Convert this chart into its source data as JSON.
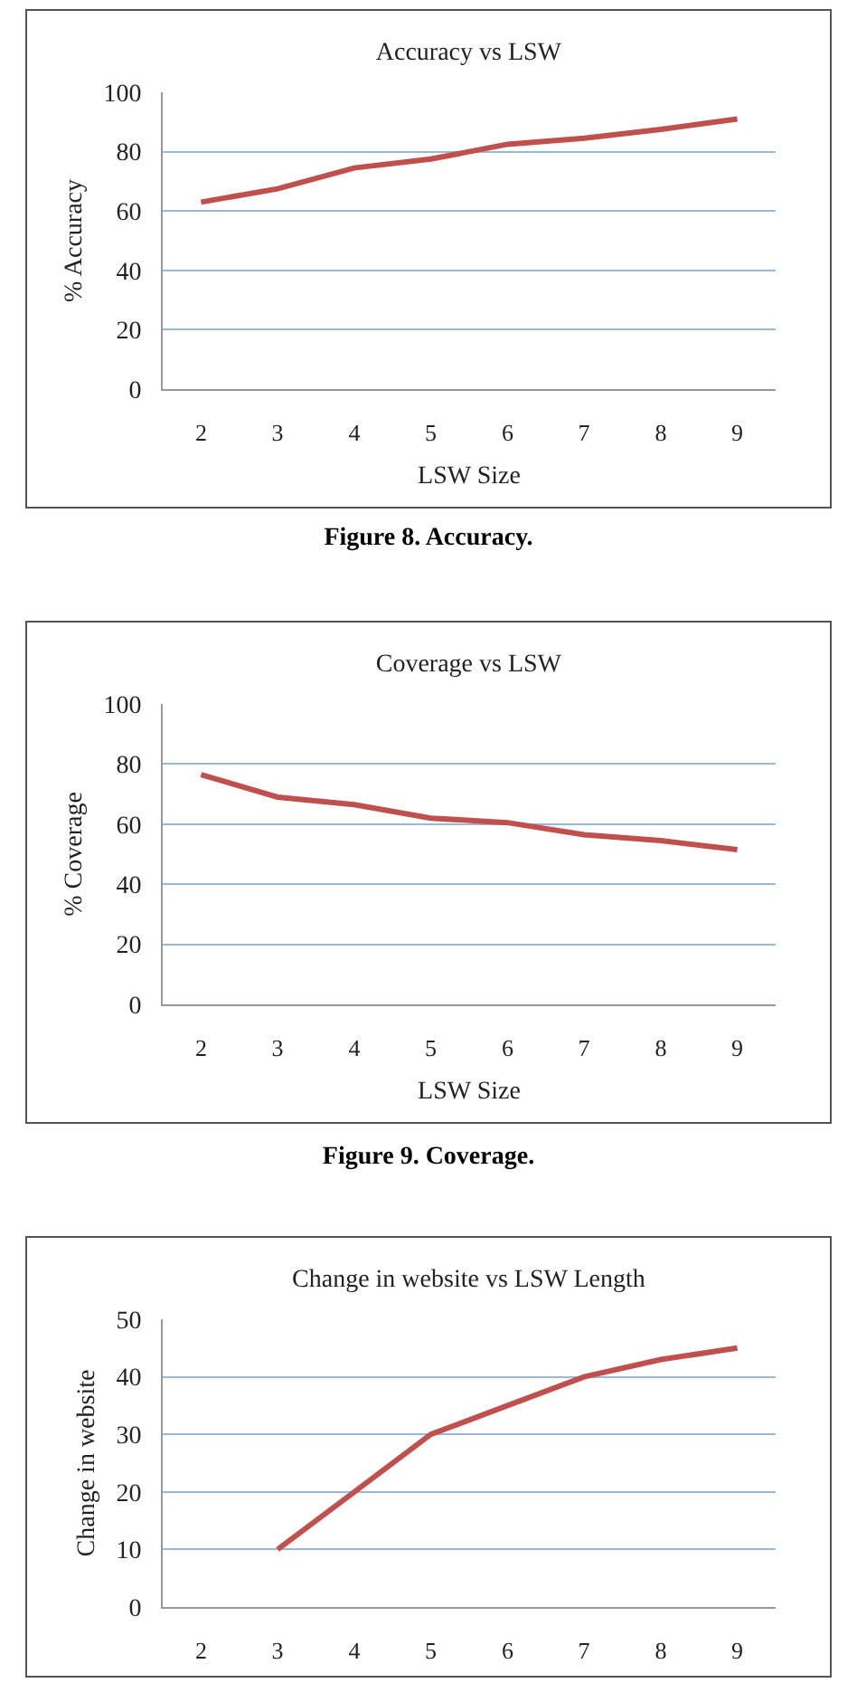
{
  "chart_data": [
    {
      "type": "line",
      "title": "Accuracy vs LSW",
      "xlabel": "LSW Size",
      "ylabel": "% Accuracy",
      "categories": [
        "2",
        "3",
        "4",
        "5",
        "6",
        "7",
        "8",
        "9"
      ],
      "series": [
        {
          "color": "#c0504d",
          "values": [
            63,
            67.5,
            74.5,
            77.5,
            82.5,
            84.5,
            87.5,
            91
          ]
        }
      ],
      "ylim": [
        0,
        100
      ],
      "yticks": [
        0,
        20,
        40,
        60,
        80,
        100
      ],
      "grid": "y",
      "annotations": [
        "Figure 8. Accuracy."
      ]
    },
    {
      "type": "line",
      "title": "Coverage vs LSW",
      "xlabel": "LSW Size",
      "ylabel": "% Coverage",
      "categories": [
        "2",
        "3",
        "4",
        "5",
        "6",
        "7",
        "8",
        "9"
      ],
      "series": [
        {
          "color": "#c0504d",
          "values": [
            76.5,
            69,
            66.5,
            62,
            60.5,
            56.5,
            54.5,
            51.5
          ]
        }
      ],
      "ylim": [
        0,
        100
      ],
      "yticks": [
        0,
        20,
        40,
        60,
        80,
        100
      ],
      "grid": "y",
      "annotations": [
        "Figure 9. Coverage."
      ]
    },
    {
      "type": "line",
      "title": "Change in website vs LSW Length",
      "ylabel": "Change in website",
      "categories": [
        "2",
        "3",
        "4",
        "5",
        "6",
        "7",
        "8",
        "9"
      ],
      "series": [
        {
          "color": "#c0504d",
          "values": [
            null,
            10,
            20,
            30,
            35,
            40,
            43,
            45
          ]
        }
      ],
      "ylim": [
        0,
        50
      ],
      "yticks": [
        0,
        10,
        20,
        30,
        40,
        50
      ],
      "grid": "y"
    }
  ]
}
